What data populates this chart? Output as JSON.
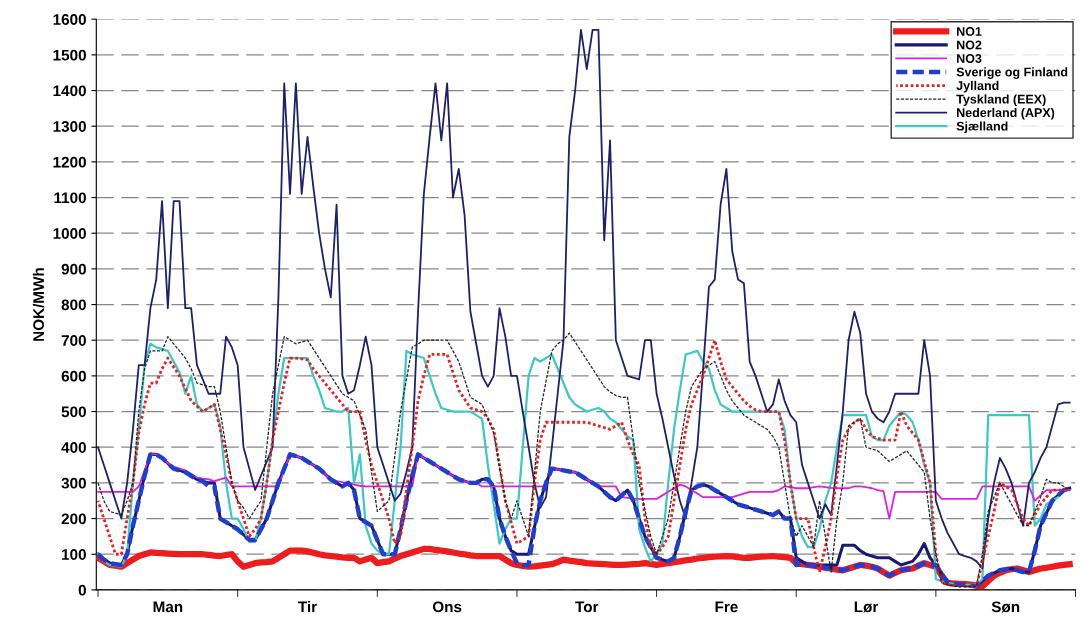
{
  "chart_data": {
    "type": "line",
    "ylabel": "NOK/MWh",
    "categories": [
      null,
      null,
      null,
      null,
      null,
      null,
      null,
      null,
      null,
      null,
      null,
      null,
      "Man",
      null,
      null,
      null,
      null,
      null,
      null,
      null,
      null,
      null,
      null,
      null,
      null,
      null,
      null,
      null,
      null,
      null,
      null,
      null,
      null,
      null,
      null,
      null,
      "Tir",
      null,
      null,
      null,
      null,
      null,
      null,
      null,
      null,
      null,
      null,
      null,
      null,
      null,
      null,
      null,
      null,
      null,
      null,
      null,
      null,
      null,
      null,
      null,
      "Ons",
      null,
      null,
      null,
      null,
      null,
      null,
      null,
      null,
      null,
      null,
      null,
      null,
      null,
      null,
      null,
      null,
      null,
      null,
      null,
      null,
      null,
      null,
      null,
      "Tor",
      null,
      null,
      null,
      null,
      null,
      null,
      null,
      null,
      null,
      null,
      null,
      null,
      null,
      null,
      null,
      null,
      null,
      null,
      null,
      null,
      null,
      null,
      null,
      "Fre",
      null,
      null,
      null,
      null,
      null,
      null,
      null,
      null,
      null,
      null,
      null,
      null,
      null,
      null,
      null,
      null,
      null,
      null,
      null,
      null,
      null,
      null,
      null,
      "Lør",
      null,
      null,
      null,
      null,
      null,
      null,
      null,
      null,
      null,
      null,
      null,
      null,
      null,
      null,
      null,
      null,
      null,
      null,
      null,
      null,
      null,
      null,
      null,
      "Søn",
      null,
      null,
      null,
      null,
      null,
      null,
      null,
      null,
      null,
      null,
      null
    ],
    "ylim": [
      0,
      1600
    ],
    "yticks": [
      0,
      100,
      200,
      300,
      400,
      500,
      600,
      700,
      800,
      900,
      1000,
      1100,
      1200,
      1300,
      1400,
      1500,
      1600
    ],
    "grid": "y",
    "legend": "top right",
    "marker": "none",
    "series": [
      {
        "name": "NO1",
        "color": "#ee1c1c",
        "line_style": "solid",
        "values": [
          90,
          80,
          70,
          68,
          65,
          75,
          85,
          95,
          100,
          105,
          104,
          103,
          102,
          101,
          100,
          100,
          100,
          100,
          100,
          98,
          96,
          95,
          98,
          100,
          80,
          65,
          70,
          75,
          77,
          78,
          80,
          90,
          100,
          110,
          110,
          110,
          108,
          104,
          100,
          97,
          95,
          93,
          91,
          90,
          90,
          80,
          85,
          90,
          75,
          78,
          80,
          88,
          95,
          100,
          105,
          110,
          115,
          115,
          112,
          110,
          108,
          105,
          102,
          100,
          97,
          95,
          95,
          95,
          95,
          95,
          85,
          75,
          70,
          67,
          65,
          66,
          68,
          70,
          72,
          78,
          85,
          82,
          80,
          78,
          75,
          74,
          73,
          72,
          71,
          70,
          70,
          71,
          72,
          73,
          75,
          73,
          70,
          73,
          75,
          78,
          80,
          83,
          85,
          88,
          90,
          92,
          93,
          94,
          95,
          94,
          92,
          90,
          90,
          92,
          93,
          94,
          95,
          93,
          92,
          90,
          75,
          72,
          70,
          68,
          65,
          62,
          60,
          57,
          55,
          60,
          65,
          70,
          68,
          65,
          60,
          50,
          40,
          48,
          55,
          58,
          60,
          68,
          75,
          70,
          65,
          40,
          20,
          18,
          17,
          16,
          15,
          12,
          10,
          25,
          40,
          48,
          55,
          58,
          60,
          55,
          50,
          55,
          60,
          62,
          65,
          68,
          70,
          72
        ]
      },
      {
        "name": "NO2",
        "color": "#1a1a70",
        "line_style": "solid",
        "values": [
          100,
          85,
          75,
          72,
          70,
          100,
          180,
          250,
          320,
          380,
          380,
          370,
          355,
          340,
          335,
          330,
          320,
          310,
          305,
          300,
          300,
          200,
          190,
          180,
          170,
          155,
          140,
          140,
          170,
          200,
          250,
          300,
          340,
          380,
          375,
          370,
          360,
          350,
          340,
          325,
          310,
          300,
          290,
          300,
          280,
          200,
          190,
          180,
          140,
          100,
          100,
          100,
          170,
          250,
          320,
          380,
          370,
          360,
          350,
          340,
          330,
          320,
          310,
          305,
          300,
          300,
          310,
          310,
          290,
          200,
          150,
          110,
          100,
          100,
          100,
          175,
          250,
          300,
          340,
          338,
          335,
          332,
          330,
          320,
          310,
          300,
          290,
          275,
          260,
          250,
          265,
          280,
          250,
          200,
          150,
          120,
          90,
          85,
          80,
          90,
          150,
          220,
          280,
          290,
          295,
          290,
          280,
          270,
          260,
          250,
          240,
          235,
          230,
          225,
          220,
          215,
          210,
          220,
          200,
          200,
          90,
          80,
          70,
          70,
          70,
          70,
          70,
          70,
          125,
          125,
          125,
          110,
          100,
          95,
          90,
          90,
          90,
          80,
          70,
          75,
          80,
          100,
          130,
          90,
          70,
          45,
          20,
          17,
          16,
          15,
          12,
          10,
          25,
          40,
          48,
          55,
          58,
          60,
          55,
          50,
          50,
          110,
          180,
          215,
          250,
          265,
          280,
          285
        ]
      },
      {
        "name": "NO3",
        "color": "#e020e0",
        "line_style": "solid",
        "values": [
          275,
          275,
          275,
          275,
          275,
          275,
          275,
          290,
          335,
          380,
          380,
          370,
          355,
          345,
          340,
          335,
          325,
          315,
          312,
          310,
          305,
          310,
          315,
          290,
          290,
          290,
          290,
          290,
          290,
          290,
          290,
          290,
          335,
          380,
          375,
          370,
          360,
          350,
          340,
          325,
          310,
          305,
          302,
          300,
          295,
          292,
          290,
          290,
          290,
          290,
          290,
          290,
          290,
          290,
          290,
          380,
          370,
          360,
          350,
          340,
          330,
          320,
          310,
          305,
          300,
          300,
          290,
          290,
          290,
          290,
          290,
          290,
          290,
          290,
          290,
          290,
          290,
          290,
          340,
          338,
          335,
          332,
          330,
          320,
          310,
          300,
          290,
          290,
          290,
          290,
          260,
          258,
          256,
          255,
          255,
          255,
          255,
          265,
          275,
          285,
          295,
          290,
          280,
          270,
          260,
          260,
          260,
          260,
          260,
          260,
          265,
          270,
          275,
          275,
          275,
          275,
          275,
          280,
          290,
          288,
          285,
          285,
          285,
          288,
          290,
          288,
          286,
          285,
          285,
          285,
          290,
          290,
          288,
          285,
          280,
          277,
          200,
          275,
          275,
          275,
          275,
          275,
          275,
          275,
          275,
          255,
          255,
          255,
          255,
          255,
          255,
          255,
          290,
          290,
          290,
          290,
          290,
          290,
          290,
          290,
          290,
          250,
          265,
          280,
          280,
          280,
          280,
          280
        ]
      },
      {
        "name": "Sverige og Finland",
        "color": "#1f3fd0",
        "line_style": "dashed",
        "values": [
          100,
          85,
          75,
          72,
          70,
          100,
          180,
          250,
          320,
          380,
          380,
          370,
          355,
          340,
          335,
          330,
          320,
          310,
          305,
          290,
          290,
          200,
          190,
          180,
          170,
          155,
          140,
          140,
          170,
          200,
          250,
          300,
          340,
          380,
          375,
          370,
          360,
          350,
          340,
          325,
          310,
          300,
          290,
          300,
          280,
          200,
          190,
          180,
          140,
          100,
          100,
          100,
          170,
          250,
          320,
          380,
          370,
          360,
          350,
          340,
          330,
          320,
          310,
          305,
          300,
          300,
          310,
          310,
          290,
          200,
          150,
          110,
          75,
          70,
          70,
          175,
          250,
          300,
          340,
          338,
          335,
          332,
          330,
          320,
          310,
          300,
          290,
          275,
          260,
          250,
          265,
          280,
          250,
          200,
          150,
          120,
          90,
          85,
          80,
          90,
          150,
          220,
          280,
          290,
          295,
          290,
          280,
          270,
          260,
          250,
          240,
          235,
          230,
          225,
          220,
          215,
          210,
          220,
          200,
          200,
          70,
          72,
          70,
          68,
          65,
          62,
          60,
          57,
          55,
          60,
          65,
          70,
          68,
          65,
          60,
          50,
          40,
          48,
          55,
          58,
          60,
          68,
          75,
          70,
          70,
          45,
          20,
          17,
          16,
          15,
          12,
          10,
          25,
          40,
          48,
          55,
          58,
          60,
          55,
          50,
          50,
          110,
          180,
          215,
          250,
          265,
          280,
          285
        ]
      },
      {
        "name": "Jylland",
        "color": "#e82020",
        "line_style": "dotted",
        "values": [
          250,
          200,
          150,
          100,
          100,
          200,
          300,
          440,
          520,
          580,
          580,
          620,
          650,
          625,
          600,
          565,
          530,
          515,
          500,
          510,
          520,
          450,
          380,
          300,
          250,
          200,
          150,
          170,
          200,
          300,
          420,
          500,
          580,
          650,
          650,
          648,
          645,
          620,
          600,
          580,
          560,
          540,
          520,
          500,
          500,
          500,
          420,
          350,
          300,
          250,
          200,
          130,
          150,
          280,
          400,
          530,
          600,
          660,
          660,
          660,
          660,
          610,
          560,
          535,
          510,
          505,
          500,
          480,
          450,
          350,
          250,
          190,
          130,
          140,
          150,
          300,
          420,
          470,
          470,
          470,
          470,
          470,
          470,
          470,
          470,
          465,
          460,
          455,
          450,
          460,
          470,
          420,
          380,
          350,
          200,
          120,
          100,
          120,
          150,
          250,
          350,
          450,
          520,
          560,
          600,
          650,
          700,
          640,
          590,
          570,
          550,
          530,
          515,
          505,
          500,
          500,
          500,
          500,
          420,
          300,
          200,
          200,
          200,
          120,
          50,
          120,
          200,
          320,
          420,
          450,
          470,
          480,
          450,
          430,
          425,
          420,
          420,
          420,
          500,
          460,
          440,
          420,
          360,
          300,
          100,
          20,
          15,
          12,
          10,
          10,
          10,
          10,
          80,
          150,
          220,
          300,
          290,
          280,
          240,
          200,
          180,
          210,
          240,
          260,
          280,
          280,
          280,
          280
        ]
      },
      {
        "name": "Tyskland (EEX)",
        "color": "#222222",
        "line_style": "dashed",
        "values": [
          300,
          250,
          220,
          215,
          210,
          250,
          300,
          500,
          620,
          670,
          670,
          670,
          710,
          690,
          670,
          650,
          620,
          580,
          575,
          570,
          570,
          500,
          400,
          300,
          250,
          230,
          200,
          225,
          250,
          400,
          550,
          630,
          710,
          700,
          690,
          695,
          700,
          675,
          650,
          625,
          600,
          575,
          550,
          540,
          530,
          490,
          450,
          330,
          220,
          235,
          250,
          375,
          500,
          590,
          680,
          690,
          700,
          700,
          700,
          700,
          700,
          670,
          640,
          590,
          540,
          530,
          520,
          480,
          440,
          345,
          250,
          200,
          250,
          200,
          150,
          325,
          500,
          585,
          670,
          690,
          700,
          720,
          695,
          670,
          645,
          620,
          595,
          570,
          555,
          545,
          540,
          540,
          420,
          300,
          225,
          150,
          100,
          150,
          200,
          300,
          400,
          500,
          570,
          595,
          620,
          630,
          640,
          600,
          560,
          530,
          510,
          490,
          480,
          470,
          460,
          450,
          430,
          400,
          300,
          200,
          150,
          180,
          150,
          120,
          250,
          150,
          50,
          200,
          300,
          460,
          470,
          480,
          400,
          395,
          390,
          375,
          360,
          370,
          380,
          390,
          370,
          350,
          330,
          200,
          100,
          20,
          15,
          10,
          10,
          10,
          10,
          10,
          100,
          220,
          260,
          300,
          270,
          240,
          210,
          180,
          180,
          220,
          260,
          310,
          300,
          300,
          290,
          280
        ]
      },
      {
        "name": "Nederland (APX)",
        "color": "#20206a",
        "line_style": "solid",
        "values": [
          400,
          350,
          300,
          250,
          200,
          300,
          450,
          630,
          630,
          790,
          870,
          1090,
          790,
          1090,
          1090,
          790,
          790,
          630,
          590,
          550,
          550,
          550,
          710,
          680,
          630,
          400,
          340,
          280,
          320,
          360,
          400,
          820,
          1420,
          1110,
          1420,
          1110,
          1270,
          1130,
          1000,
          900,
          820,
          1080,
          600,
          550,
          560,
          630,
          710,
          630,
          400,
          350,
          300,
          250,
          270,
          330,
          400,
          780,
          1110,
          1270,
          1420,
          1260,
          1420,
          1100,
          1180,
          1050,
          780,
          690,
          600,
          570,
          600,
          790,
          710,
          600,
          600,
          500,
          400,
          300,
          230,
          260,
          400,
          550,
          700,
          1270,
          1400,
          1570,
          1460,
          1570,
          1570,
          980,
          1260,
          700,
          650,
          600,
          595,
          590,
          700,
          700,
          550,
          480,
          400,
          320,
          250,
          200,
          300,
          400,
          620,
          850,
          870,
          1080,
          1180,
          950,
          870,
          860,
          640,
          600,
          550,
          500,
          520,
          590,
          530,
          490,
          470,
          350,
          300,
          250,
          200,
          240,
          210,
          350,
          500,
          700,
          780,
          720,
          550,
          500,
          480,
          470,
          500,
          550,
          550,
          550,
          550,
          550,
          700,
          600,
          250,
          200,
          160,
          130,
          100,
          95,
          90,
          80,
          60,
          200,
          300,
          370,
          340,
          300,
          240,
          180,
          300,
          330,
          370,
          400,
          460,
          520,
          525,
          525
        ]
      },
      {
        "name": "Sjælland",
        "color": "#3cc8c8",
        "line_style": "solid",
        "values": [
          100,
          80,
          70,
          67,
          65,
          100,
          300,
          450,
          630,
          690,
          680,
          675,
          670,
          640,
          610,
          550,
          600,
          520,
          500,
          510,
          520,
          460,
          300,
          200,
          200,
          170,
          135,
          135,
          200,
          300,
          420,
          550,
          650,
          650,
          650,
          650,
          650,
          600,
          560,
          510,
          505,
          500,
          500,
          510,
          300,
          380,
          180,
          130,
          110,
          100,
          100,
          250,
          400,
          670,
          660,
          655,
          650,
          600,
          550,
          510,
          505,
          500,
          500,
          500,
          500,
          490,
          480,
          350,
          240,
          130,
          170,
          200,
          200,
          400,
          600,
          650,
          640,
          650,
          660,
          620,
          580,
          540,
          520,
          510,
          500,
          505,
          510,
          500,
          480,
          470,
          450,
          430,
          420,
          170,
          120,
          80,
          100,
          130,
          300,
          450,
          560,
          660,
          665,
          670,
          640,
          620,
          560,
          520,
          510,
          500,
          500,
          500,
          500,
          500,
          500,
          500,
          500,
          500,
          450,
          300,
          200,
          150,
          120,
          120,
          170,
          250,
          300,
          400,
          490,
          490,
          490,
          490,
          490,
          430,
          420,
          420,
          460,
          480,
          500,
          490,
          470,
          420,
          350,
          300,
          30,
          25,
          20,
          18,
          16,
          15,
          15,
          15,
          30,
          490,
          490,
          490,
          490,
          490,
          490,
          490,
          490,
          180,
          200,
          240,
          250,
          260,
          280,
          280
        ]
      }
    ]
  }
}
